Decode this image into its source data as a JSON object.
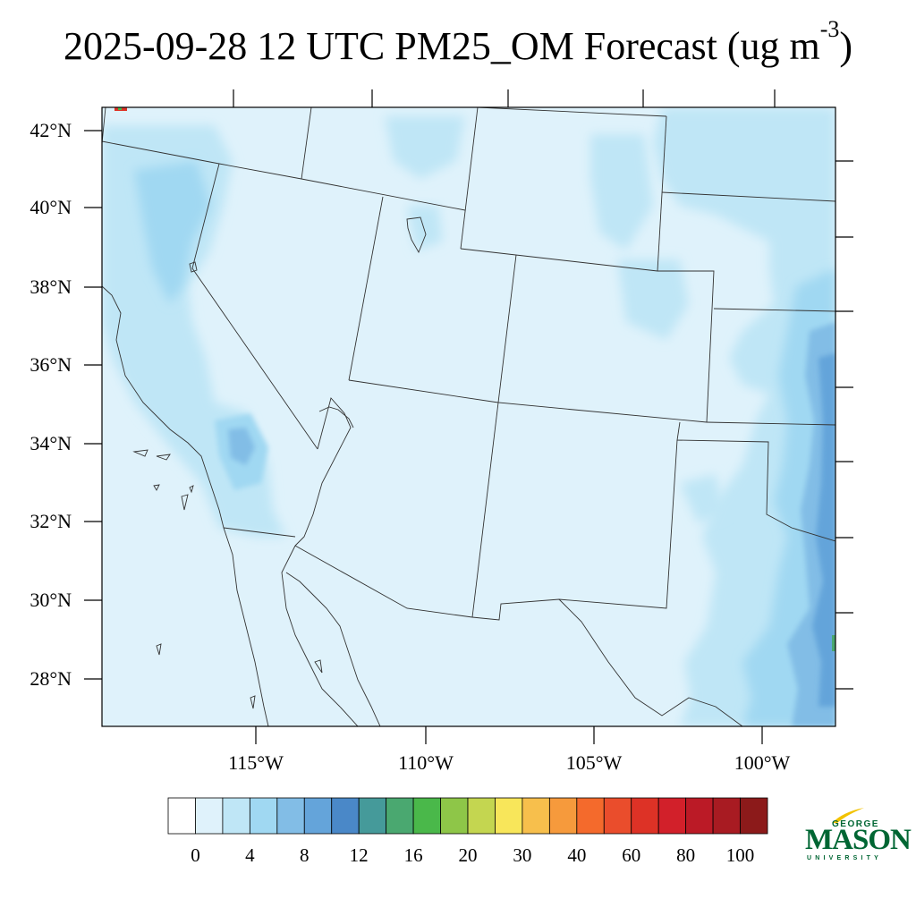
{
  "title": {
    "main": "2025-09-28 12 UTC PM25_OM Forecast (ug m",
    "superscript": "-3",
    "close": ")"
  },
  "map": {
    "lat_labels": [
      "42°N",
      "40°N",
      "38°N",
      "36°N",
      "34°N",
      "32°N",
      "30°N",
      "28°N"
    ],
    "lon_labels": [
      "115°W",
      "110°W",
      "105°W",
      "100°W"
    ],
    "background_color": "#dff2fb",
    "border_color": "#333333"
  },
  "colorbar": {
    "colors": [
      "#ffffff",
      "#dff2fb",
      "#bfe6f6",
      "#a0d8f2",
      "#82bde6",
      "#64a4da",
      "#4a88c8",
      "#459a9a",
      "#4aa870",
      "#4ab84a",
      "#8ec648",
      "#c4d650",
      "#f8e65a",
      "#f7bf4c",
      "#f69a3c",
      "#f46a2c",
      "#ea4d2c",
      "#dd3226",
      "#d2202a",
      "#bb1a26",
      "#a81b22",
      "#8c1a1a"
    ],
    "labels": [
      "0",
      "4",
      "8",
      "12",
      "16",
      "20",
      "30",
      "40",
      "60",
      "80",
      "100"
    ]
  },
  "logo": {
    "line1": "GEORGE",
    "line2": "MASON",
    "line3": "UNIVERSITY",
    "color": "#006633",
    "accent": "#f2c200"
  }
}
